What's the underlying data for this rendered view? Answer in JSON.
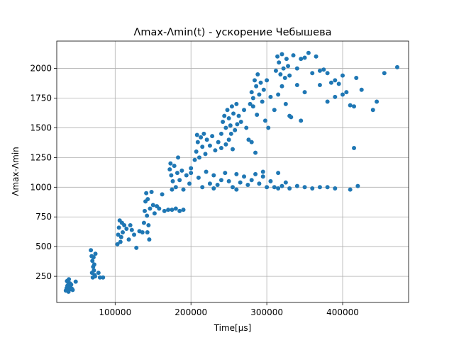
{
  "chart_data": {
    "type": "scatter",
    "title": "Λmax-Λmin(t) - ускорение Чебышева",
    "xlabel": "Time[µs]",
    "ylabel": "Λmax-Λmin",
    "xlim": [
      23000,
      487000
    ],
    "ylim": [
      30,
      2230
    ],
    "x_ticks": [
      100000,
      200000,
      300000,
      400000
    ],
    "x_tick_labels": [
      "100000",
      "200000",
      "300000",
      "400000"
    ],
    "y_ticks": [
      250,
      500,
      750,
      1000,
      1250,
      1500,
      1750,
      2000
    ],
    "y_tick_labels": [
      "250",
      "500",
      "750",
      "1000",
      "1250",
      "1500",
      "1750",
      "2000"
    ],
    "grid": true,
    "marker_color": "#1f77b4",
    "series": [
      {
        "points": [
          [
            35000,
            130
          ],
          [
            36000,
            150
          ],
          [
            37000,
            170
          ],
          [
            38000,
            200
          ],
          [
            39000,
            225
          ],
          [
            40000,
            140
          ],
          [
            41000,
            160
          ],
          [
            42000,
            180
          ],
          [
            44000,
            135
          ],
          [
            36500,
            210
          ],
          [
            38500,
            120
          ],
          [
            40500,
            190
          ],
          [
            43000,
            145
          ],
          [
            48000,
            205
          ],
          [
            68000,
            470
          ],
          [
            69000,
            420
          ],
          [
            70000,
            380
          ],
          [
            71000,
            330
          ],
          [
            72000,
            300
          ],
          [
            73000,
            260
          ],
          [
            74000,
            440
          ],
          [
            70500,
            240
          ],
          [
            72500,
            350
          ],
          [
            69500,
            280
          ],
          [
            71500,
            410
          ],
          [
            73500,
            250
          ],
          [
            78000,
            280
          ],
          [
            80000,
            240
          ],
          [
            84000,
            240
          ],
          [
            103000,
            520
          ],
          [
            104000,
            600
          ],
          [
            105000,
            660
          ],
          [
            106000,
            720
          ],
          [
            107000,
            540
          ],
          [
            108000,
            580
          ],
          [
            109000,
            700
          ],
          [
            110000,
            620
          ],
          [
            112000,
            680
          ],
          [
            115000,
            650
          ],
          [
            118000,
            560
          ],
          [
            120000,
            680
          ],
          [
            122000,
            640
          ],
          [
            125000,
            600
          ],
          [
            128000,
            490
          ],
          [
            132000,
            630
          ],
          [
            136000,
            620
          ],
          [
            138000,
            700
          ],
          [
            139000,
            800
          ],
          [
            140000,
            880
          ],
          [
            141000,
            950
          ],
          [
            142000,
            760
          ],
          [
            143000,
            900
          ],
          [
            144000,
            680
          ],
          [
            146000,
            820
          ],
          [
            148000,
            960
          ],
          [
            150000,
            850
          ],
          [
            152000,
            780
          ],
          [
            155000,
            840
          ],
          [
            158000,
            820
          ],
          [
            162000,
            940
          ],
          [
            165000,
            800
          ],
          [
            170000,
            810
          ],
          [
            175000,
            810
          ],
          [
            180000,
            820
          ],
          [
            185000,
            800
          ],
          [
            190000,
            810
          ],
          [
            142500,
            620
          ],
          [
            145000,
            560
          ],
          [
            172000,
            1150
          ],
          [
            173000,
            1200
          ],
          [
            174000,
            1100
          ],
          [
            176000,
            1050
          ],
          [
            178000,
            1180
          ],
          [
            180000,
            1000
          ],
          [
            182000,
            1120
          ],
          [
            185000,
            1060
          ],
          [
            188000,
            1140
          ],
          [
            190000,
            980
          ],
          [
            194000,
            1100
          ],
          [
            198000,
            1030
          ],
          [
            200000,
            1160
          ],
          [
            175000,
            980
          ],
          [
            183000,
            1250
          ],
          [
            205000,
            1230
          ],
          [
            207000,
            1300
          ],
          [
            209000,
            1380
          ],
          [
            211000,
            1250
          ],
          [
            213000,
            1420
          ],
          [
            215000,
            1340
          ],
          [
            217000,
            1450
          ],
          [
            219000,
            1280
          ],
          [
            221000,
            1400
          ],
          [
            225000,
            1350
          ],
          [
            228000,
            1430
          ],
          [
            232000,
            1310
          ],
          [
            236000,
            1380
          ],
          [
            240000,
            1330
          ],
          [
            246000,
            1360
          ],
          [
            250000,
            1400
          ],
          [
            255000,
            1320
          ],
          [
            208000,
            1440
          ],
          [
            240000,
            1450
          ],
          [
            242000,
            1550
          ],
          [
            244000,
            1600
          ],
          [
            246000,
            1500
          ],
          [
            248000,
            1650
          ],
          [
            250000,
            1580
          ],
          [
            252000,
            1520
          ],
          [
            254000,
            1680
          ],
          [
            256000,
            1620
          ],
          [
            258000,
            1480
          ],
          [
            260000,
            1700
          ],
          [
            263000,
            1600
          ],
          [
            266000,
            1550
          ],
          [
            270000,
            1650
          ],
          [
            273000,
            1500
          ],
          [
            276000,
            1400
          ],
          [
            280000,
            1380
          ],
          [
            285000,
            1290
          ],
          [
            253000,
            1450
          ],
          [
            261000,
            1530
          ],
          [
            278000,
            1700
          ],
          [
            280000,
            1800
          ],
          [
            282000,
            1750
          ],
          [
            284000,
            1900
          ],
          [
            286000,
            1850
          ],
          [
            288000,
            1950
          ],
          [
            290000,
            1780
          ],
          [
            292000,
            1880
          ],
          [
            294000,
            1720
          ],
          [
            296000,
            1820
          ],
          [
            300000,
            1900
          ],
          [
            305000,
            1760
          ],
          [
            310000,
            1650
          ],
          [
            315000,
            1780
          ],
          [
            320000,
            1850
          ],
          [
            325000,
            1700
          ],
          [
            330000,
            1600
          ],
          [
            298000,
            1560
          ],
          [
            302000,
            1500
          ],
          [
            282000,
            1680
          ],
          [
            287000,
            1610
          ],
          [
            312000,
            1980
          ],
          [
            314000,
            2100
          ],
          [
            316000,
            2050
          ],
          [
            318000,
            1950
          ],
          [
            320000,
            2120
          ],
          [
            322000,
            2000
          ],
          [
            324000,
            1920
          ],
          [
            326000,
            2080
          ],
          [
            328000,
            2020
          ],
          [
            330000,
            1940
          ],
          [
            335000,
            2110
          ],
          [
            340000,
            2000
          ],
          [
            345000,
            2080
          ],
          [
            350000,
            2090
          ],
          [
            355000,
            2130
          ],
          [
            365000,
            2100
          ],
          [
            370000,
            1980
          ],
          [
            375000,
            1990
          ],
          [
            380000,
            1960
          ],
          [
            385000,
            1880
          ],
          [
            390000,
            1900
          ],
          [
            395000,
            1870
          ],
          [
            400000,
            1780
          ],
          [
            405000,
            1800
          ],
          [
            410000,
            1690
          ],
          [
            415000,
            1680
          ],
          [
            425000,
            1820
          ],
          [
            445000,
            1720
          ],
          [
            455000,
            1960
          ],
          [
            472000,
            2010
          ],
          [
            415000,
            1330
          ],
          [
            345000,
            1560
          ],
          [
            332000,
            1590
          ],
          [
            340000,
            1860
          ],
          [
            360000,
            1960
          ],
          [
            370000,
            1860
          ],
          [
            380000,
            1720
          ],
          [
            390000,
            1760
          ],
          [
            400000,
            1940
          ],
          [
            418000,
            1920
          ],
          [
            440000,
            1650
          ],
          [
            350000,
            1800
          ],
          [
            200000,
            1120
          ],
          [
            210000,
            1080
          ],
          [
            215000,
            1000
          ],
          [
            220000,
            1130
          ],
          [
            225000,
            1030
          ],
          [
            230000,
            1100
          ],
          [
            235000,
            1020
          ],
          [
            240000,
            1060
          ],
          [
            245000,
            1120
          ],
          [
            250000,
            1050
          ],
          [
            255000,
            1000
          ],
          [
            260000,
            1110
          ],
          [
            265000,
            1040
          ],
          [
            270000,
            1090
          ],
          [
            275000,
            1020
          ],
          [
            280000,
            1060
          ],
          [
            285000,
            1110
          ],
          [
            290000,
            1030
          ],
          [
            295000,
            1090
          ],
          [
            300000,
            1000
          ],
          [
            305000,
            1050
          ],
          [
            310000,
            1000
          ],
          [
            315000,
            990
          ],
          [
            320000,
            1010
          ],
          [
            325000,
            1040
          ],
          [
            330000,
            990
          ],
          [
            340000,
            1010
          ],
          [
            350000,
            1000
          ],
          [
            360000,
            990
          ],
          [
            370000,
            1000
          ],
          [
            380000,
            1000
          ],
          [
            390000,
            990
          ],
          [
            410000,
            980
          ],
          [
            420000,
            1010
          ],
          [
            295000,
            1130
          ],
          [
            315000,
            1120
          ],
          [
            260000,
            980
          ],
          [
            230000,
            990
          ]
        ]
      }
    ]
  }
}
